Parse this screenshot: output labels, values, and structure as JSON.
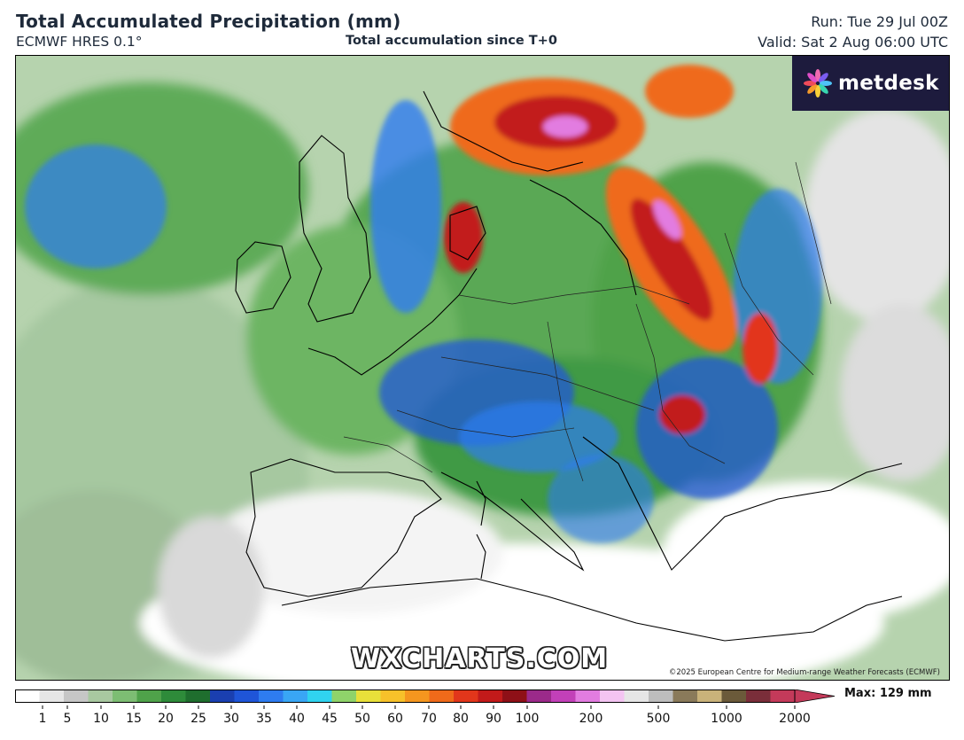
{
  "header": {
    "title": "Total Accumulated Precipitation (mm)",
    "model": "ECMWF HRES 0.1°",
    "subtitle": "Total accumulation since T+0",
    "run": "Run: Tue 29 Jul 00Z",
    "valid": "Valid: Sat 2 Aug 06:00 UTC"
  },
  "logo": {
    "text": "metdesk",
    "icon": "flower-logo-icon"
  },
  "watermark": "WXCHARTS.COM",
  "copyright": "©2025 European Centre for Medium-range Weather Forecasts (ECMWF)",
  "colorbar": {
    "max_label": "Max: 129 mm",
    "tick_labels": [
      "1",
      "5",
      "10",
      "15",
      "20",
      "25",
      "30",
      "35",
      "40",
      "45",
      "50",
      "60",
      "70",
      "80",
      "90",
      "100",
      "200",
      "500",
      "1000",
      "2000"
    ],
    "colors": [
      "#ffffff",
      "#e6e6e6",
      "#c6c6c6",
      "#a8c8a0",
      "#7dbd73",
      "#4fa24a",
      "#2e8b3a",
      "#1f6e2e",
      "#1a3fb0",
      "#1f55d8",
      "#2e7cf0",
      "#39a6f5",
      "#30d3ef",
      "#8fd36a",
      "#e8e03a",
      "#f7c12a",
      "#f5961f",
      "#ef6a1a",
      "#e2361b",
      "#c21a1a",
      "#8e1017",
      "#9b2a8a",
      "#c240b8",
      "#e27ce0",
      "#f4c4f2",
      "#e6e6e6",
      "#bdbdbd",
      "#8a7a5a",
      "#c9b27a",
      "#6b5a3a",
      "#7a2e3a",
      "#c43a5a"
    ]
  }
}
